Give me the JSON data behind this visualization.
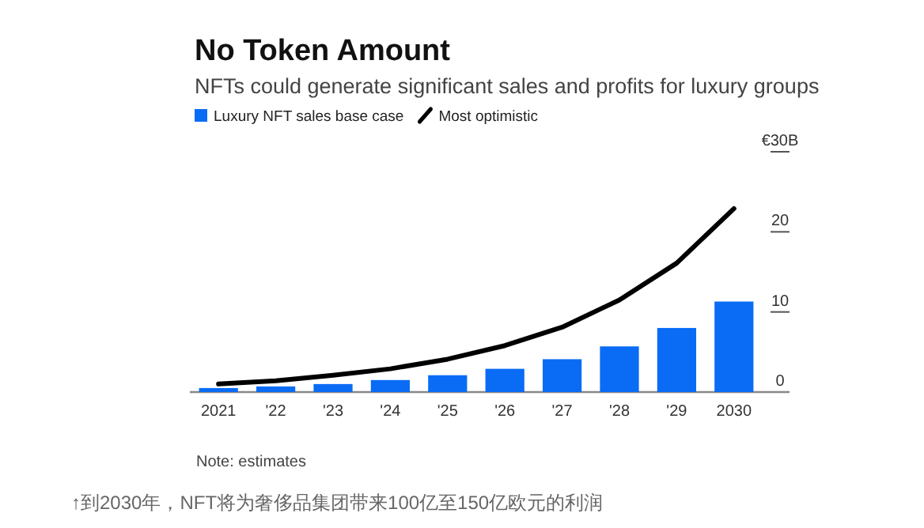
{
  "chart_data": {
    "type": "bar",
    "title": "No Token Amount",
    "subtitle": "NFTs could generate significant sales and profits for luxury groups",
    "categories": [
      "2021",
      "'22",
      "'23",
      "'24",
      "'25",
      "'26",
      "'27",
      "'28",
      "'29",
      "2030"
    ],
    "series": [
      {
        "name": "Luxury NFT sales base case",
        "color": "#0a6cf5",
        "values": [
          0.5,
          0.7,
          1.0,
          1.5,
          2.1,
          2.9,
          4.1,
          5.7,
          8.0,
          11.3
        ]
      },
      {
        "name": "Most optimistic",
        "type": "line",
        "color": "#000000",
        "values": [
          1.0,
          1.4,
          2.1,
          2.9,
          4.1,
          5.8,
          8.1,
          11.5,
          16.1,
          22.9
        ]
      }
    ],
    "ylim": [
      0,
      30
    ],
    "yticks": [
      0,
      10,
      20,
      {
        "value": 30,
        "label": "€30B"
      }
    ],
    "legend": "top left",
    "annotations": [
      "Note: estimates",
      "↑到2030年，NFT将为奢侈品集团带来100亿至150亿欧元的利润"
    ]
  }
}
